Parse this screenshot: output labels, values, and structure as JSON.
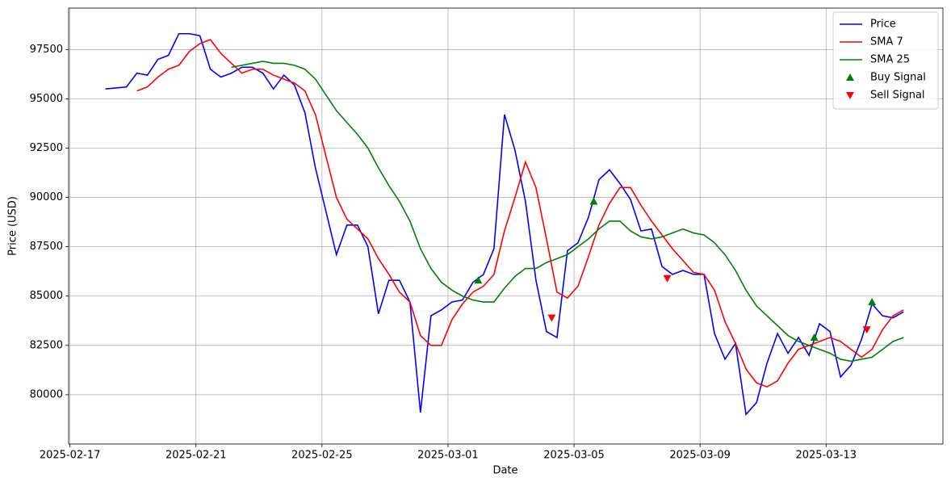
{
  "chart_data": {
    "type": "line",
    "xlabel": "Date",
    "ylabel": "Price (USD)",
    "x": [
      "2025-02-18T03:00",
      "2025-02-18T11:00",
      "2025-02-18T19:00",
      "2025-02-19T03:00",
      "2025-02-19T11:00",
      "2025-02-19T19:00",
      "2025-02-20T03:00",
      "2025-02-20T11:00",
      "2025-02-20T19:00",
      "2025-02-21T03:00",
      "2025-02-21T11:00",
      "2025-02-21T19:00",
      "2025-02-22T03:00",
      "2025-02-22T11:00",
      "2025-02-22T19:00",
      "2025-02-23T03:00",
      "2025-02-23T11:00",
      "2025-02-23T19:00",
      "2025-02-24T03:00",
      "2025-02-24T11:00",
      "2025-02-24T19:00",
      "2025-02-25T03:00",
      "2025-02-25T11:00",
      "2025-02-25T19:00",
      "2025-02-26T03:00",
      "2025-02-26T11:00",
      "2025-02-26T19:00",
      "2025-02-27T03:00",
      "2025-02-27T11:00",
      "2025-02-27T19:00",
      "2025-02-28T03:00",
      "2025-02-28T11:00",
      "2025-02-28T19:00",
      "2025-03-01T03:00",
      "2025-03-01T11:00",
      "2025-03-01T19:00",
      "2025-03-02T03:00",
      "2025-03-02T11:00",
      "2025-03-02T19:00",
      "2025-03-03T03:00",
      "2025-03-03T11:00",
      "2025-03-03T19:00",
      "2025-03-04T03:00",
      "2025-03-04T11:00",
      "2025-03-04T19:00",
      "2025-03-05T03:00",
      "2025-03-05T11:00",
      "2025-03-05T19:00",
      "2025-03-06T03:00",
      "2025-03-06T11:00",
      "2025-03-06T19:00",
      "2025-03-07T03:00",
      "2025-03-07T11:00",
      "2025-03-07T19:00",
      "2025-03-08T03:00",
      "2025-03-08T11:00",
      "2025-03-08T19:00",
      "2025-03-09T03:00",
      "2025-03-09T11:00",
      "2025-03-09T19:00",
      "2025-03-10T03:00",
      "2025-03-10T11:00",
      "2025-03-10T19:00",
      "2025-03-11T03:00",
      "2025-03-11T11:00",
      "2025-03-11T19:00",
      "2025-03-12T03:00",
      "2025-03-12T11:00",
      "2025-03-12T19:00",
      "2025-03-13T03:00",
      "2025-03-13T11:00",
      "2025-03-13T19:00",
      "2025-03-14T03:00",
      "2025-03-14T11:00",
      "2025-03-14T19:00",
      "2025-03-15T03:00",
      "2025-03-15T11:00"
    ],
    "series": [
      {
        "name": "Price",
        "color": "#0000ff",
        "values": [
          95500,
          95550,
          95600,
          96300,
          96200,
          97000,
          97200,
          98300,
          98300,
          98200,
          96500,
          96100,
          96300,
          96600,
          96600,
          96300,
          95500,
          96200,
          95700,
          94300,
          91500,
          89300,
          87100,
          88600,
          88600,
          87500,
          84100,
          85800,
          85800,
          84700,
          79100,
          84000,
          84300,
          84700,
          84800,
          85700,
          86100,
          87400,
          94200,
          92400,
          89800,
          85800,
          83200,
          82900,
          87300,
          87700,
          89000,
          90900,
          91400,
          90700,
          89900,
          88300,
          88400,
          86500,
          86100,
          86300,
          86100,
          86100,
          83100,
          81800,
          82600,
          79000,
          79600,
          81600,
          83100,
          82100,
          82900,
          82000,
          83600,
          83200,
          80900,
          81500,
          82800,
          84600,
          84000,
          83900,
          84200
        ]
      },
      {
        "name": "SMA 7",
        "color": "#ff0000",
        "values": [
          null,
          null,
          null,
          95400,
          95600,
          96100,
          96500,
          96700,
          97400,
          97800,
          98000,
          97300,
          96800,
          96300,
          96500,
          96500,
          96200,
          96000,
          95800,
          95400,
          94200,
          92100,
          90000,
          88900,
          88400,
          87900,
          86900,
          86100,
          85200,
          84700,
          83000,
          82500,
          82500,
          83800,
          84600,
          85200,
          85500,
          86100,
          88300,
          90000,
          91800,
          90500,
          87900,
          85200,
          84900,
          85500,
          87000,
          88600,
          89700,
          90500,
          90500,
          89600,
          88800,
          88100,
          87400,
          86800,
          86200,
          86100,
          85300,
          83700,
          82600,
          81300,
          80600,
          80400,
          80700,
          81600,
          82300,
          82500,
          82700,
          82900,
          82700,
          82300,
          81900,
          82300,
          83300,
          84000,
          84300
        ]
      },
      {
        "name": "SMA 25",
        "color": "#008000",
        "values": [
          null,
          null,
          null,
          null,
          null,
          null,
          null,
          null,
          null,
          null,
          null,
          null,
          96600,
          96700,
          96800,
          96900,
          96800,
          96800,
          96700,
          96500,
          96000,
          95200,
          94400,
          93800,
          93200,
          92500,
          91500,
          90600,
          89800,
          88800,
          87400,
          86400,
          85700,
          85300,
          85000,
          84800,
          84700,
          84700,
          85400,
          86000,
          86400,
          86400,
          86700,
          86900,
          87100,
          87500,
          87900,
          88400,
          88800,
          88800,
          88300,
          88000,
          87900,
          88000,
          88200,
          88400,
          88200,
          88100,
          87700,
          87100,
          86300,
          85300,
          84500,
          84000,
          83500,
          83000,
          82700,
          82500,
          82300,
          82100,
          81800,
          81700,
          81800,
          81900,
          82300,
          82700,
          82900
        ]
      },
      {
        "name": "Buy Signal",
        "color": "#008000",
        "marker": "^",
        "x": [
          "2025-03-01T23:00",
          "2025-03-05T15:00",
          "2025-03-12T15:00",
          "2025-03-14T11:00"
        ],
        "values": [
          85800,
          89800,
          82900,
          84700
        ]
      },
      {
        "name": "Sell Signal",
        "color": "#ff0000",
        "marker": "v",
        "x": [
          "2025-03-04T07:00",
          "2025-03-07T23:00",
          "2025-03-14T07:00"
        ],
        "values": [
          83900,
          85900,
          83300
        ]
      }
    ],
    "xlim": [
      "2025-02-16T23:00",
      "2025-03-16T17:00"
    ],
    "xticks": [
      "2025-02-17",
      "2025-02-21",
      "2025-02-25",
      "2025-03-01",
      "2025-03-05",
      "2025-03-09",
      "2025-03-13"
    ],
    "ylim": [
      77500,
      99600
    ],
    "yticks": [
      80000,
      82500,
      85000,
      87500,
      90000,
      92500,
      95000,
      97500
    ],
    "grid": true,
    "legend": "upper right"
  }
}
